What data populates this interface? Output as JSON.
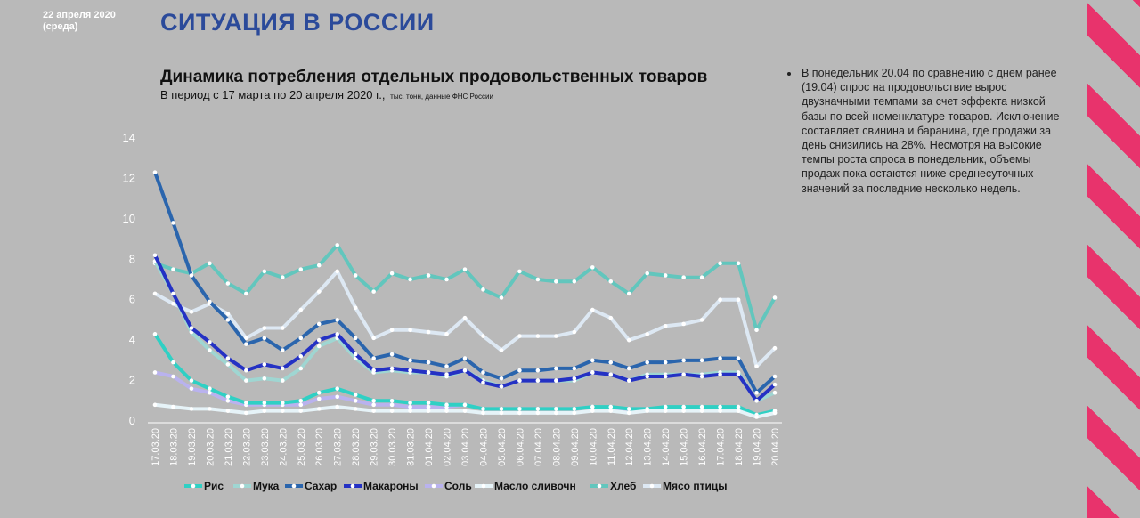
{
  "header": {
    "date_line1": "22 апреля 2020",
    "date_line2": "(среда)",
    "section_title": "СИТУАЦИЯ В РОССИИ"
  },
  "chart_header": {
    "title": "Динамика потребления отдельных продовольственных товаров",
    "subtitle": "В период с 17 марта по 20 апреля 2020 г.,",
    "source": "тыс. тонн, данные ФНС России"
  },
  "note": {
    "text": "В понедельник 20.04 по сравнению с днем ранее (19.04) спрос на продовольствие вырос двузначными темпами за счет эффекта низкой базы по всей номенклатуре товаров. Исключение составляет свинина и баранина, где продажи за день снизились на 28%. Несмотря на высокие темпы роста спроса в понедельник, объемы продаж пока остаются ниже среднесуточных значений за последние несколько недель."
  },
  "colors": {
    "accent_pink": "#e8336c",
    "title_blue": "#2b4a9a",
    "background": "#b9b9b9"
  },
  "chart_data": {
    "type": "line",
    "ylim": [
      0,
      14
    ],
    "yticks": [
      0,
      2,
      4,
      6,
      8,
      10,
      12,
      14
    ],
    "grid": false,
    "legend_position": "bottom",
    "markers": "white dots",
    "x": [
      "17.03.20",
      "18.03.20",
      "19.03.20",
      "20.03.20",
      "21.03.20",
      "22.03.20",
      "23.03.20",
      "24.03.20",
      "25.03.20",
      "26.03.20",
      "27.03.20",
      "28.03.20",
      "29.03.20",
      "30.03.20",
      "31.03.20",
      "01.04.20",
      "02.04.20",
      "03.04.20",
      "04.04.20",
      "05.04.20",
      "06.04.20",
      "07.04.20",
      "08.04.20",
      "09.04.20",
      "10.04.20",
      "11.04.20",
      "12.04.20",
      "13.04.20",
      "14.04.20",
      "15.04.20",
      "16.04.20",
      "17.04.20",
      "18.04.20",
      "19.04.20",
      "20.04.20"
    ],
    "series": [
      {
        "name": "Рис",
        "color": "#2fd0c4",
        "values": [
          4.3,
          2.9,
          2.0,
          1.6,
          1.2,
          0.9,
          0.9,
          0.9,
          1.0,
          1.4,
          1.6,
          1.3,
          1.0,
          1.0,
          0.9,
          0.9,
          0.8,
          0.8,
          0.6,
          0.6,
          0.6,
          0.6,
          0.6,
          0.6,
          0.7,
          0.7,
          0.6,
          0.6,
          0.7,
          0.7,
          0.7,
          0.7,
          0.7,
          0.3,
          0.5
        ]
      },
      {
        "name": "Мука",
        "color": "#9fd6d2",
        "values": [
          7.9,
          6.3,
          4.4,
          3.5,
          2.8,
          2.0,
          2.1,
          2.0,
          2.6,
          3.7,
          4.1,
          3.1,
          2.4,
          2.5,
          2.4,
          2.4,
          2.2,
          2.5,
          2.0,
          1.7,
          2.0,
          2.0,
          2.0,
          2.0,
          2.4,
          2.3,
          2.0,
          2.3,
          2.3,
          2.3,
          2.3,
          2.4,
          2.4,
          1.0,
          1.4
        ]
      },
      {
        "name": "Сахар",
        "color": "#2a65ad",
        "values": [
          12.3,
          9.8,
          7.2,
          5.9,
          5.0,
          3.8,
          4.1,
          3.5,
          4.1,
          4.8,
          5.0,
          4.1,
          3.1,
          3.3,
          3.0,
          2.9,
          2.7,
          3.1,
          2.4,
          2.1,
          2.5,
          2.5,
          2.6,
          2.6,
          3.0,
          2.9,
          2.6,
          2.9,
          2.9,
          3.0,
          3.0,
          3.1,
          3.1,
          1.4,
          2.2
        ]
      },
      {
        "name": "Макароны",
        "color": "#2431c4",
        "values": [
          8.2,
          6.3,
          4.6,
          3.9,
          3.1,
          2.5,
          2.8,
          2.6,
          3.2,
          4.0,
          4.3,
          3.3,
          2.5,
          2.6,
          2.5,
          2.4,
          2.3,
          2.5,
          1.9,
          1.7,
          2.0,
          2.0,
          2.0,
          2.1,
          2.4,
          2.3,
          2.0,
          2.2,
          2.2,
          2.3,
          2.2,
          2.3,
          2.3,
          1.0,
          1.8
        ]
      },
      {
        "name": "Соль",
        "color": "#b9b2ee",
        "values": [
          2.4,
          2.2,
          1.6,
          1.4,
          1.0,
          0.8,
          0.8,
          0.8,
          0.8,
          1.1,
          1.2,
          1.0,
          0.8,
          0.8,
          0.7,
          0.7,
          0.7,
          0.8,
          0.6,
          0.6,
          0.6,
          0.6,
          0.6,
          0.6,
          0.7,
          0.6,
          0.6,
          0.6,
          0.6,
          0.6,
          0.6,
          0.6,
          0.6,
          0.3,
          0.4
        ]
      },
      {
        "name": "Масло сливочн",
        "color": "#e6f3f8",
        "values": [
          0.8,
          0.7,
          0.6,
          0.6,
          0.5,
          0.4,
          0.5,
          0.5,
          0.5,
          0.6,
          0.7,
          0.6,
          0.5,
          0.5,
          0.5,
          0.5,
          0.5,
          0.5,
          0.4,
          0.4,
          0.4,
          0.4,
          0.4,
          0.4,
          0.5,
          0.5,
          0.4,
          0.5,
          0.5,
          0.5,
          0.5,
          0.5,
          0.5,
          0.2,
          0.4
        ]
      },
      {
        "name": "Хлеб",
        "color": "#62c6bd",
        "values": [
          7.8,
          7.5,
          7.3,
          7.8,
          6.8,
          6.3,
          7.4,
          7.1,
          7.5,
          7.7,
          8.7,
          7.2,
          6.4,
          7.3,
          7.0,
          7.2,
          7.0,
          7.5,
          6.5,
          6.1,
          7.4,
          7.0,
          6.9,
          6.9,
          7.6,
          6.9,
          6.3,
          7.3,
          7.2,
          7.1,
          7.1,
          7.8,
          7.8,
          4.5,
          6.1
        ]
      },
      {
        "name": "Мясо птицы",
        "color": "#dde8f3",
        "values": [
          6.3,
          5.8,
          5.4,
          5.8,
          5.3,
          4.1,
          4.6,
          4.6,
          5.5,
          6.4,
          7.4,
          5.6,
          4.1,
          4.5,
          4.5,
          4.4,
          4.3,
          5.1,
          4.2,
          3.5,
          4.2,
          4.2,
          4.2,
          4.4,
          5.5,
          5.1,
          4.0,
          4.3,
          4.7,
          4.8,
          5.0,
          6.0,
          6.0,
          2.7,
          3.6
        ]
      }
    ]
  }
}
